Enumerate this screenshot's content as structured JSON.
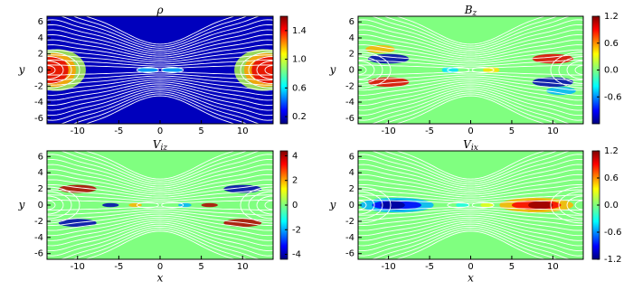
{
  "chart_data": [
    {
      "type": "heatmap",
      "title": "ρ",
      "ylabel": "y",
      "colormap": "jet",
      "xlim": [
        -13.7,
        13.7
      ],
      "ylim": [
        -6.7,
        6.7
      ],
      "xticks": [
        -10,
        -5,
        0,
        5,
        10
      ],
      "yticks": [
        -6,
        -4,
        -2,
        0,
        2,
        4,
        6
      ],
      "clim": [
        0.1,
        1.6
      ],
      "cticks": [
        0.2,
        0.6,
        {
          "value": 1,
          "label": "1.0"
        },
        1.4
      ]
    },
    {
      "type": "heatmap",
      "title": "B",
      "title_subscript": "z",
      "ylabel": "y",
      "colormap": "jet",
      "xlim": [
        -13.7,
        13.7
      ],
      "ylim": [
        -6.7,
        6.7
      ],
      "xticks": [
        -10,
        -5,
        0,
        5,
        10
      ],
      "yticks": [
        -6,
        -4,
        -2,
        0,
        2,
        4,
        6
      ],
      "clim": [
        -1.2,
        1.2
      ],
      "cticks": [
        -0.6,
        {
          "value": 0,
          "label": "0.0"
        },
        0.6,
        1.2
      ]
    },
    {
      "type": "heatmap",
      "title": "V",
      "title_subscript": "iz",
      "xlabel": "x",
      "ylabel": "y",
      "colormap": "jet",
      "xlim": [
        -13.7,
        13.7
      ],
      "ylim": [
        -6.7,
        6.7
      ],
      "xticks": [
        -10,
        -5,
        0,
        5,
        10
      ],
      "yticks": [
        -6,
        -4,
        -2,
        0,
        2,
        4,
        6
      ],
      "clim": [
        -4.4,
        4.4
      ],
      "cticks": [
        -4,
        -2,
        0,
        2,
        4
      ]
    },
    {
      "type": "heatmap",
      "title": "V",
      "title_subscript": "ix",
      "xlabel": "x",
      "ylabel": "y",
      "colormap": "jet",
      "xlim": [
        -13.7,
        13.7
      ],
      "ylim": [
        -6.7,
        6.7
      ],
      "xticks": [
        -10,
        -5,
        0,
        5,
        10
      ],
      "yticks": [
        -6,
        -4,
        -2,
        0,
        2,
        4,
        6
      ],
      "clim": [
        -1.2,
        1.2
      ],
      "cticks": [
        -1.2,
        -0.6,
        {
          "value": 0,
          "label": "0.0"
        },
        0.6,
        1.2
      ]
    }
  ]
}
